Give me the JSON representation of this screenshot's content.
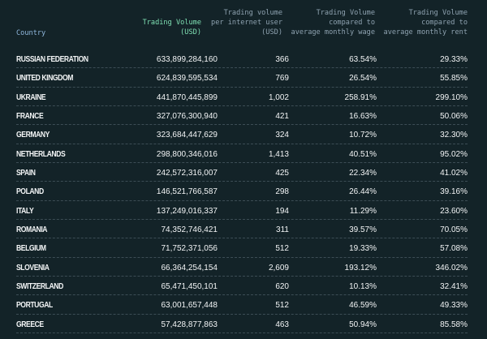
{
  "header": {
    "country": "Country",
    "volume": [
      "Trading Volume",
      "(USD)"
    ],
    "per_user": [
      "Trading volume",
      "per internet user",
      "(USD)"
    ],
    "wage": [
      "Trading Volume",
      "compared to",
      "average monthly wage"
    ],
    "rent": [
      "Trading Volume",
      "compared to",
      "average monthly rent"
    ]
  },
  "rows": [
    {
      "country": "RUSSIAN FEDERATION",
      "volume": "633,899,284,160",
      "per_user": "366",
      "wage": "63.54%",
      "rent": "29.33%"
    },
    {
      "country": "UNITED KINGDOM",
      "volume": "624,839,595,534",
      "per_user": "769",
      "wage": "26.54%",
      "rent": "55.85%"
    },
    {
      "country": "UKRAINE",
      "volume": "441,870,445,899",
      "per_user": "1,002",
      "wage": "258.91%",
      "rent": "299.10%"
    },
    {
      "country": "FRANCE",
      "volume": "327,076,300,940",
      "per_user": "421",
      "wage": "16.63%",
      "rent": "50.06%"
    },
    {
      "country": "GERMANY",
      "volume": "323,684,447,629",
      "per_user": "324",
      "wage": "10.72%",
      "rent": "32.30%"
    },
    {
      "country": "NETHERLANDS",
      "volume": "298,800,346,016",
      "per_user": "1,413",
      "wage": "40.51%",
      "rent": "95.02%"
    },
    {
      "country": "SPAIN",
      "volume": "242,572,316,007",
      "per_user": "425",
      "wage": "22.34%",
      "rent": "41.02%"
    },
    {
      "country": "POLAND",
      "volume": "146,521,766,587",
      "per_user": "298",
      "wage": "26.44%",
      "rent": "39.16%"
    },
    {
      "country": "ITALY",
      "volume": "137,249,016,337",
      "per_user": "194",
      "wage": "11.29%",
      "rent": "23.60%"
    },
    {
      "country": "ROMANIA",
      "volume": "74,352,746,421",
      "per_user": "311",
      "wage": "39.57%",
      "rent": "70.05%"
    },
    {
      "country": "BELGIUM",
      "volume": "71,752,371,056",
      "per_user": "512",
      "wage": "19.33%",
      "rent": "57.08%"
    },
    {
      "country": "SLOVENIA",
      "volume": "66,364,254,154",
      "per_user": "2,609",
      "wage": "193.12%",
      "rent": "346.02%"
    },
    {
      "country": "SWITZERLAND",
      "volume": "65,471,450,101",
      "per_user": "620",
      "wage": "10.13%",
      "rent": "32.41%"
    },
    {
      "country": "PORTUGAL",
      "volume": "63,001,657,448",
      "per_user": "512",
      "wage": "46.59%",
      "rent": "49.33%"
    },
    {
      "country": "GREECE",
      "volume": "57,428,877,863",
      "per_user": "463",
      "wage": "50.94%",
      "rent": "85.58%"
    }
  ],
  "colors": {
    "background": "#132328",
    "accent_header": "#7fe0b3",
    "country_header": "#8fb7dc",
    "muted_header": "#8ea2b0",
    "text": "#f3f5f6"
  }
}
